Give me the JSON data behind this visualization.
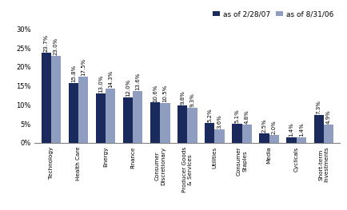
{
  "categories": [
    "Technology",
    "Health Care",
    "Energy",
    "Finance",
    "Consumer\nDiscretionary",
    "Producer Goods\n& Services",
    "Utilities",
    "Consumer\nStaples",
    "Media",
    "Cyclicals",
    "Short-term\nInvestments"
  ],
  "values_2007": [
    23.7,
    15.8,
    13.0,
    12.0,
    10.6,
    9.8,
    5.2,
    5.1,
    2.5,
    1.4,
    7.3
  ],
  "values_2006": [
    23.0,
    17.5,
    14.3,
    13.6,
    10.5,
    9.3,
    3.6,
    4.8,
    2.0,
    1.4,
    4.9
  ],
  "labels_2007": [
    "23.7%",
    "15.8%",
    "13.0%",
    "12.0%",
    "10.6%",
    "9.8%",
    "5.2%",
    "5.1%",
    "2.5%",
    "1.4%",
    "7.3%"
  ],
  "labels_2006": [
    "23.0%",
    "17.5%",
    "14.3%",
    "13.6%",
    "10.5%",
    "9.3%",
    "3.6%",
    "4.8%",
    "2.0%",
    "1.4%",
    "4.9%"
  ],
  "color_2007": "#1b2a5c",
  "color_2006": "#8f9ec0",
  "legend_2007": "as of 2/28/07",
  "legend_2006": "as of 8/31/06",
  "ylim": [
    0,
    31
  ],
  "yticks": [
    0,
    5,
    10,
    15,
    20,
    25,
    30
  ],
  "ytick_labels": [
    "0%",
    "5%",
    "10%",
    "15%",
    "20%",
    "25%",
    "30%"
  ],
  "bar_width": 0.36,
  "background_color": "#ffffff",
  "label_fontsize": 5.0,
  "tick_fontsize": 6.0,
  "legend_fontsize": 6.5,
  "category_fontsize": 5.2
}
